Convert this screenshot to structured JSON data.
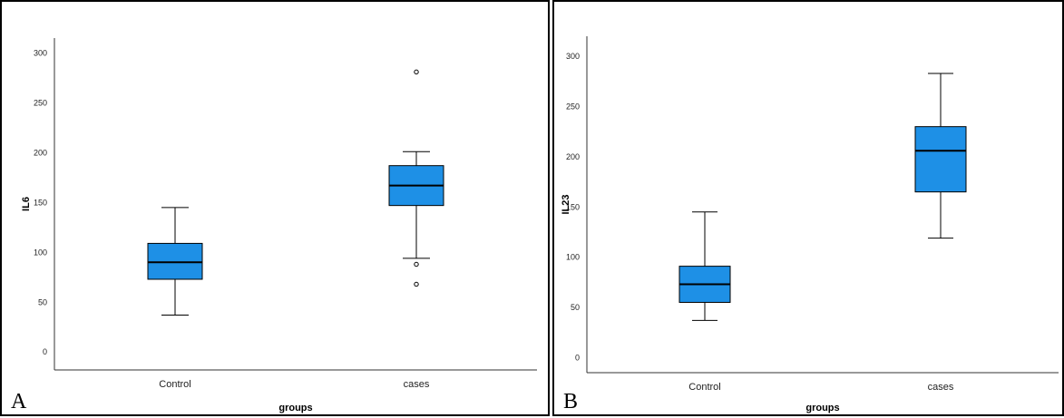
{
  "panels": [
    {
      "label": "A",
      "chart_data": {
        "type": "boxplot",
        "xlabel": "groups",
        "ylabel": "IL6",
        "categories": [
          "Control",
          "cases"
        ],
        "yticks": [
          0,
          50,
          100,
          150,
          200,
          250,
          300
        ],
        "ylim": [
          -18,
          315
        ],
        "grid": false,
        "box_color": "#1e90e6",
        "boxes": [
          {
            "category": "Control",
            "whisker_low": 37,
            "q1": 73,
            "median": 90,
            "q3": 109,
            "whisker_high": 145,
            "outliers": []
          },
          {
            "category": "cases",
            "whisker_low": 94,
            "q1": 147,
            "median": 167,
            "q3": 187,
            "whisker_high": 201,
            "outliers": [
              281,
              88,
              68
            ]
          }
        ]
      }
    },
    {
      "label": "B",
      "chart_data": {
        "type": "boxplot",
        "xlabel": "groups",
        "ylabel": "IL23",
        "categories": [
          "Control",
          "cases"
        ],
        "yticks": [
          0,
          50,
          100,
          150,
          200,
          250,
          300
        ],
        "ylim": [
          -15,
          320
        ],
        "grid": false,
        "box_color": "#1e90e6",
        "boxes": [
          {
            "category": "Control",
            "whisker_low": 37,
            "q1": 55,
            "median": 73,
            "q3": 91,
            "whisker_high": 145,
            "outliers": []
          },
          {
            "category": "cases",
            "whisker_low": 119,
            "q1": 165,
            "median": 206,
            "q3": 230,
            "whisker_high": 283,
            "outliers": []
          }
        ]
      }
    }
  ]
}
